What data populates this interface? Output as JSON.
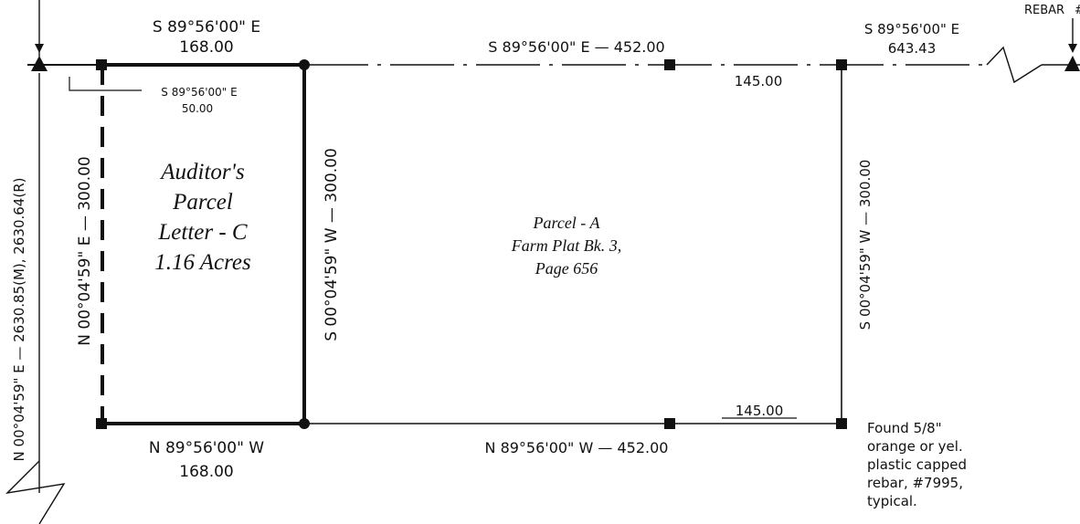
{
  "colors": {
    "ink": "#111111",
    "paper": "#ffffff"
  },
  "top_left_call": {
    "bearing": "S 89°56'00\" E",
    "distance": "168.00"
  },
  "top_mid_call": "S 89°56'00\" E — 452.00",
  "top_right_call": {
    "bearing": "S 89°56'00\" E",
    "distance": "643.43"
  },
  "rebar_label": "REBAR",
  "hash_fragment": "#",
  "top_145": "145.00",
  "small_call": {
    "bearing": "S 89°56'00\" E",
    "distance": "50.00"
  },
  "left_outer_call": "N 00°04'59\" E — 2630.85(M), 2630.64(R)",
  "west_line_call": "N 00°04'59\" E — 300.00",
  "mid_line_call": "S 00°04'59\" W — 300.00",
  "east_line_call": "S 00°04'59\" W — 300.00",
  "parcel_c": [
    "Auditor's",
    "Parcel",
    "Letter - C",
    "1.16 Acres"
  ],
  "parcel_a": [
    "Parcel - A",
    "Farm Plat Bk. 3,",
    "Page 656"
  ],
  "bottom_145": "145.00",
  "bottom_left_call": {
    "bearing": "N 89°56'00\" W",
    "distance": "168.00"
  },
  "bottom_mid_call": "N 89°56'00\" W — 452.00",
  "found_note": [
    "Found 5/8\"",
    "orange or yel.",
    "plastic capped",
    "rebar, #7995,",
    "typical."
  ]
}
